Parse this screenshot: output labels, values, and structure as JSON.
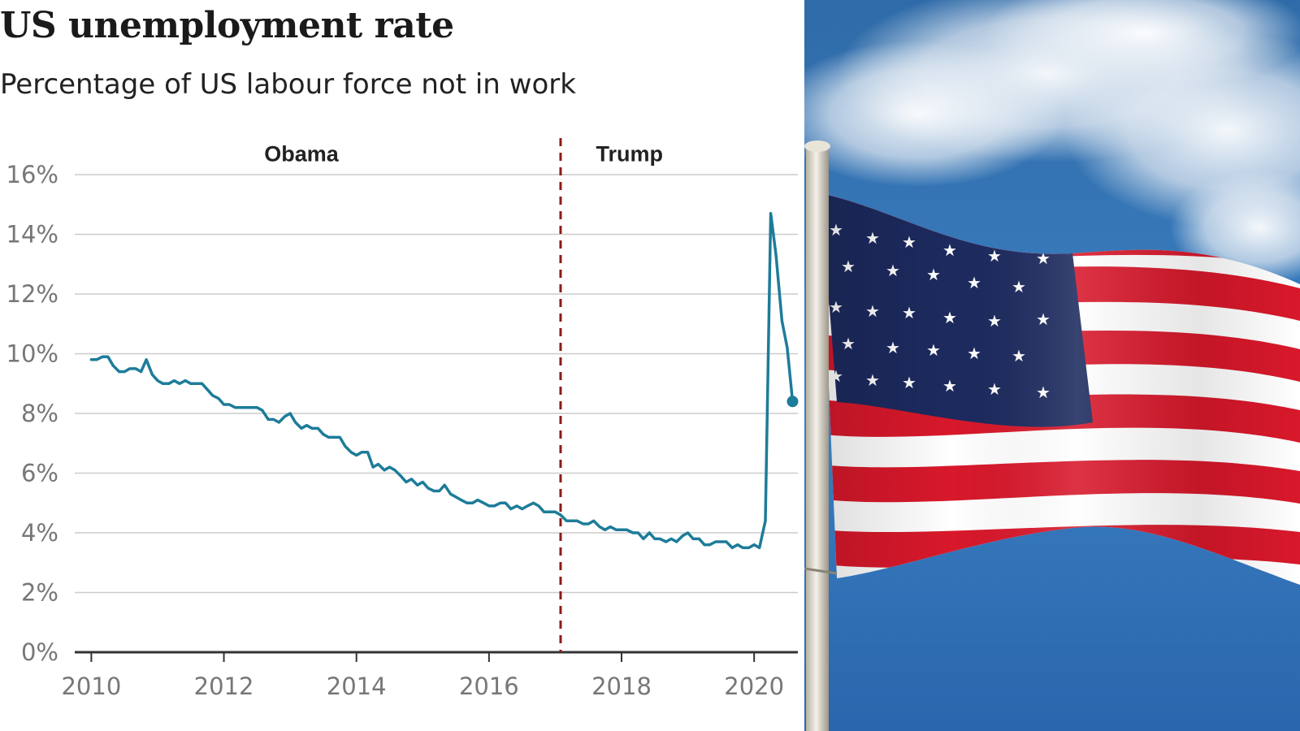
{
  "chart_data": {
    "type": "line",
    "title": "US unemployment rate",
    "subtitle": "Percentage of US labour force not in work",
    "xlabel": "",
    "ylabel": "",
    "xlim": [
      2009.75,
      2020.66
    ],
    "ylim": [
      0,
      16
    ],
    "grid": true,
    "y_ticks": [
      {
        "value": 0,
        "label": "0%"
      },
      {
        "value": 2,
        "label": "2%"
      },
      {
        "value": 4,
        "label": "4%"
      },
      {
        "value": 6,
        "label": "6%"
      },
      {
        "value": 8,
        "label": "8%"
      },
      {
        "value": 10,
        "label": "10%"
      },
      {
        "value": 12,
        "label": "12%"
      },
      {
        "value": 14,
        "label": "14%"
      },
      {
        "value": 16,
        "label": "16%"
      }
    ],
    "x_ticks": [
      {
        "value": 2010,
        "label": "2010"
      },
      {
        "value": 2012,
        "label": "2012"
      },
      {
        "value": 2014,
        "label": "2014"
      },
      {
        "value": 2016,
        "label": "2016"
      },
      {
        "value": 2018,
        "label": "2018"
      },
      {
        "value": 2020,
        "label": "2020"
      }
    ],
    "annotations": [
      {
        "text": "Obama",
        "x": 2013.17,
        "y": 16.5
      },
      {
        "text": "Trump",
        "x": 2018.12,
        "y": 16.5
      }
    ],
    "divider": {
      "x": 2017.08,
      "color": "#8b1a1a",
      "style": "dashed"
    },
    "series": [
      {
        "color": "#1d7c99",
        "end_marker": true,
        "x": [
          2010.0,
          2010.08,
          2010.17,
          2010.25,
          2010.33,
          2010.42,
          2010.5,
          2010.58,
          2010.67,
          2010.75,
          2010.83,
          2010.92,
          2011.0,
          2011.08,
          2011.17,
          2011.25,
          2011.33,
          2011.42,
          2011.5,
          2011.58,
          2011.67,
          2011.75,
          2011.83,
          2011.92,
          2012.0,
          2012.08,
          2012.17,
          2012.25,
          2012.33,
          2012.42,
          2012.5,
          2012.58,
          2012.67,
          2012.75,
          2012.83,
          2012.92,
          2013.0,
          2013.08,
          2013.17,
          2013.25,
          2013.33,
          2013.42,
          2013.5,
          2013.58,
          2013.67,
          2013.75,
          2013.83,
          2013.92,
          2014.0,
          2014.08,
          2014.17,
          2014.25,
          2014.33,
          2014.42,
          2014.5,
          2014.58,
          2014.67,
          2014.75,
          2014.83,
          2014.92,
          2015.0,
          2015.08,
          2015.17,
          2015.25,
          2015.33,
          2015.42,
          2015.5,
          2015.58,
          2015.67,
          2015.75,
          2015.83,
          2015.92,
          2016.0,
          2016.08,
          2016.17,
          2016.25,
          2016.33,
          2016.42,
          2016.5,
          2016.58,
          2016.67,
          2016.75,
          2016.83,
          2016.92,
          2017.0,
          2017.08,
          2017.17,
          2017.25,
          2017.33,
          2017.42,
          2017.5,
          2017.58,
          2017.67,
          2017.75,
          2017.83,
          2017.92,
          2018.0,
          2018.08,
          2018.17,
          2018.25,
          2018.33,
          2018.42,
          2018.5,
          2018.58,
          2018.67,
          2018.75,
          2018.83,
          2018.92,
          2019.0,
          2019.08,
          2019.17,
          2019.25,
          2019.33,
          2019.42,
          2019.5,
          2019.58,
          2019.67,
          2019.75,
          2019.83,
          2019.92,
          2020.0,
          2020.08,
          2020.17,
          2020.25,
          2020.33,
          2020.42,
          2020.5,
          2020.58
        ],
        "values": [
          9.8,
          9.8,
          9.9,
          9.9,
          9.6,
          9.4,
          9.4,
          9.5,
          9.5,
          9.4,
          9.8,
          9.3,
          9.1,
          9.0,
          9.0,
          9.1,
          9.0,
          9.1,
          9.0,
          9.0,
          9.0,
          8.8,
          8.6,
          8.5,
          8.3,
          8.3,
          8.2,
          8.2,
          8.2,
          8.2,
          8.2,
          8.1,
          7.8,
          7.8,
          7.7,
          7.9,
          8.0,
          7.7,
          7.5,
          7.6,
          7.5,
          7.5,
          7.3,
          7.2,
          7.2,
          7.2,
          6.9,
          6.7,
          6.6,
          6.7,
          6.7,
          6.2,
          6.3,
          6.1,
          6.2,
          6.1,
          5.9,
          5.7,
          5.8,
          5.6,
          5.7,
          5.5,
          5.4,
          5.4,
          5.6,
          5.3,
          5.2,
          5.1,
          5.0,
          5.0,
          5.1,
          5.0,
          4.9,
          4.9,
          5.0,
          5.0,
          4.8,
          4.9,
          4.8,
          4.9,
          5.0,
          4.9,
          4.7,
          4.7,
          4.7,
          4.6,
          4.4,
          4.4,
          4.4,
          4.3,
          4.3,
          4.4,
          4.2,
          4.1,
          4.2,
          4.1,
          4.1,
          4.1,
          4.0,
          4.0,
          3.8,
          4.0,
          3.8,
          3.8,
          3.7,
          3.8,
          3.7,
          3.9,
          4.0,
          3.8,
          3.8,
          3.6,
          3.6,
          3.7,
          3.7,
          3.7,
          3.5,
          3.6,
          3.5,
          3.5,
          3.6,
          3.5,
          4.4,
          14.7,
          13.3,
          11.1,
          10.2,
          8.4
        ]
      }
    ]
  },
  "photo": {
    "description_icon": "american-flag-icon"
  }
}
